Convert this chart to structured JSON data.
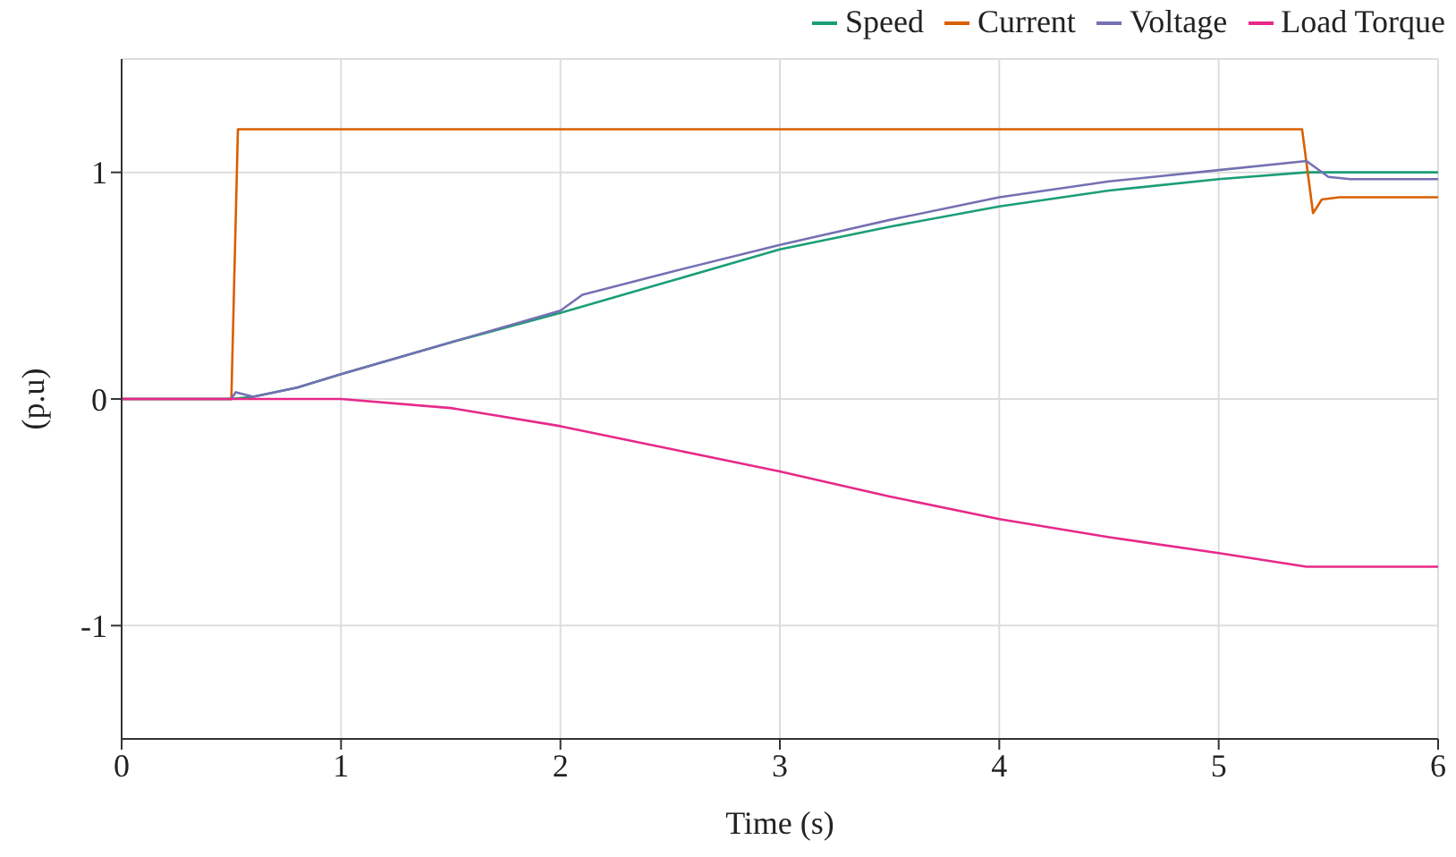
{
  "chart_data": {
    "type": "line",
    "xlabel": "Time (s)",
    "ylabel": "(p.u)",
    "xlim": [
      0,
      6
    ],
    "xticks": [
      0,
      1,
      2,
      3,
      4,
      5,
      6
    ],
    "ylim": [
      -1.5,
      1.5
    ],
    "yticks": [
      -1,
      0,
      1
    ],
    "grid": true,
    "legend": "top right",
    "marker": "none",
    "line_style": "solid",
    "series": [
      {
        "name": "Speed",
        "color": "#1b9e77",
        "x": [
          0,
          0.5,
          0.6,
          0.8,
          1,
          1.5,
          2,
          2.5,
          3,
          3.5,
          4,
          4.5,
          5,
          5.4,
          6
        ],
        "values": [
          0,
          0,
          0.01,
          0.05,
          0.11,
          0.25,
          0.38,
          0.52,
          0.66,
          0.76,
          0.85,
          0.92,
          0.97,
          1.0,
          1.0
        ]
      },
      {
        "name": "Current",
        "color": "#d95f02",
        "x": [
          0,
          0.5,
          0.53,
          5.38,
          5.43,
          5.47,
          5.55,
          6
        ],
        "values": [
          0,
          0,
          1.19,
          1.19,
          0.82,
          0.88,
          0.89,
          0.89
        ]
      },
      {
        "name": "Voltage",
        "color": "#7570b3",
        "x": [
          0,
          0.5,
          0.52,
          0.6,
          0.8,
          1,
          1.5,
          2,
          2.1,
          2.5,
          3,
          3.5,
          4,
          4.5,
          5,
          5.4,
          5.5,
          5.6,
          6
        ],
        "values": [
          0,
          0,
          0.03,
          0.01,
          0.05,
          0.11,
          0.25,
          0.39,
          0.46,
          0.56,
          0.68,
          0.79,
          0.89,
          0.96,
          1.01,
          1.05,
          0.98,
          0.97,
          0.97
        ]
      },
      {
        "name": "Load Torque",
        "color": "#e7298a",
        "x": [
          0,
          1,
          1.5,
          2,
          2.5,
          3,
          3.5,
          4,
          4.5,
          5,
          5.4,
          6
        ],
        "values": [
          0,
          0,
          -0.04,
          -0.12,
          -0.22,
          -0.32,
          -0.43,
          -0.53,
          -0.61,
          -0.68,
          -0.74,
          -0.74
        ]
      }
    ]
  }
}
